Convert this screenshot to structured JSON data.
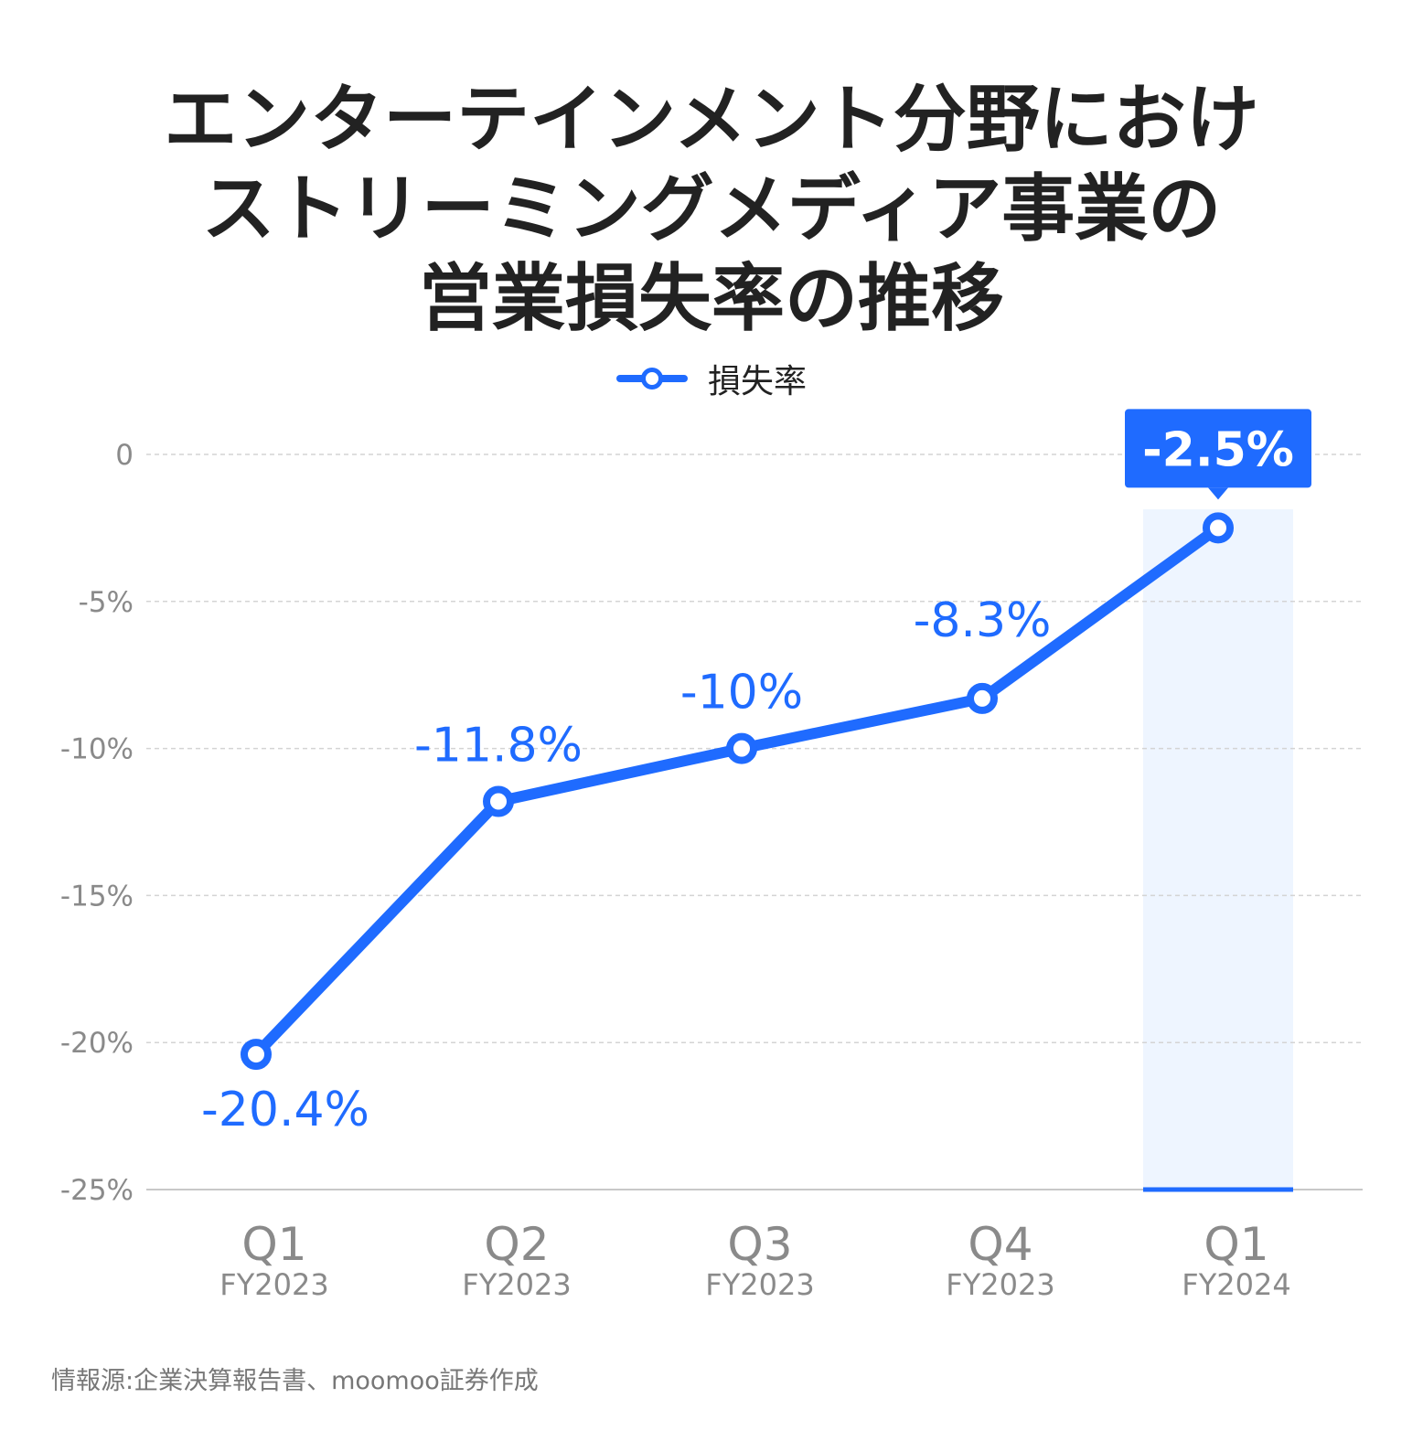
{
  "title_lines": [
    "エンターテインメント分野におけ",
    "ストリーミングメディア事業の",
    "営業損失率の推移"
  ],
  "legend_label": "損失率",
  "source": "情報源:企業決算報告書、moomoo証券作成",
  "colors": {
    "line": "#1f6bff",
    "highlight_bg": "#eef5ff",
    "axis_text": "#8a8a8a",
    "grid": "#d4d4d4"
  },
  "chart_data": {
    "type": "line",
    "categories": [
      {
        "quarter": "Q1",
        "year": "FY2023"
      },
      {
        "quarter": "Q2",
        "year": "FY2023"
      },
      {
        "quarter": "Q3",
        "year": "FY2023"
      },
      {
        "quarter": "Q4",
        "year": "FY2023"
      },
      {
        "quarter": "Q1",
        "year": "FY2024"
      }
    ],
    "series": [
      {
        "name": "損失率",
        "values": [
          -20.4,
          -11.8,
          -10,
          -8.3,
          -2.5
        ],
        "labels": [
          "-20.4%",
          "-11.8%",
          "-10%",
          "-8.3%",
          "-2.5%"
        ]
      }
    ],
    "yticks": [
      0,
      -5,
      -10,
      -15,
      -20,
      -25
    ],
    "ytick_labels": [
      "0",
      "-5%",
      "-10%",
      "-15%",
      "-20%",
      "-25%"
    ],
    "ylim": [
      -25,
      0
    ],
    "highlight_index": 4,
    "grid": true
  }
}
